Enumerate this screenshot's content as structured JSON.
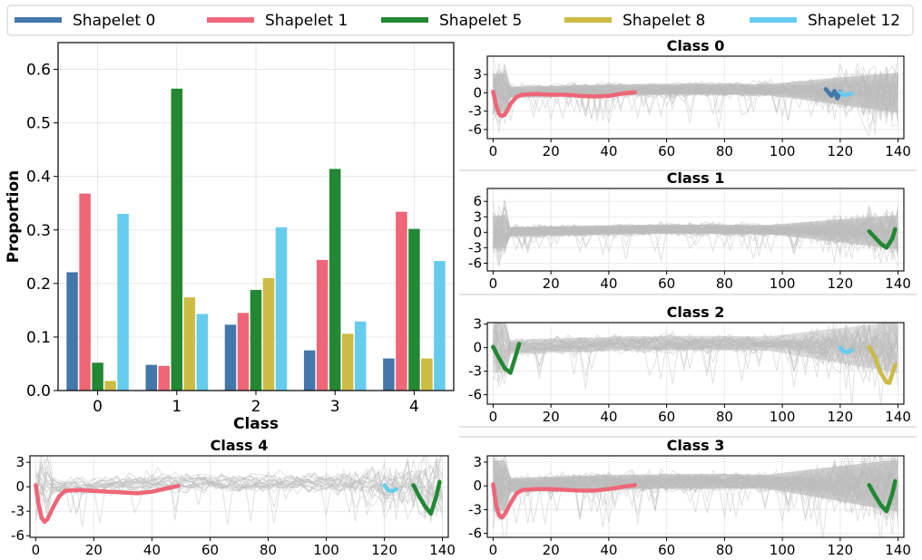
{
  "legend": {
    "items": [
      {
        "label": "Shapelet 0",
        "color": "#4477aa"
      },
      {
        "label": "Shapelet 1",
        "color": "#ee6677"
      },
      {
        "label": "Shapelet 5",
        "color": "#228833"
      },
      {
        "label": "Shapelet 8",
        "color": "#ccbb44"
      },
      {
        "label": "Shapelet 12",
        "color": "#66ccee"
      }
    ]
  },
  "chart_data": [
    {
      "type": "bar",
      "xlabel": "Class",
      "ylabel": "Proportion",
      "categories": [
        "0",
        "1",
        "2",
        "3",
        "4"
      ],
      "ylim": [
        0,
        0.65
      ],
      "yticks": [
        "0.0",
        "0.1",
        "0.2",
        "0.3",
        "0.4",
        "0.5",
        "0.6"
      ],
      "grid": true,
      "series": [
        {
          "name": "Shapelet 0",
          "color": "#4477aa",
          "values": [
            0.221,
            0.048,
            0.123,
            0.075,
            0.06
          ]
        },
        {
          "name": "Shapelet 1",
          "color": "#ee6677",
          "values": [
            0.368,
            0.046,
            0.145,
            0.244,
            0.334
          ]
        },
        {
          "name": "Shapelet 5",
          "color": "#228833",
          "values": [
            0.052,
            0.564,
            0.188,
            0.414,
            0.302
          ]
        },
        {
          "name": "Shapelet 8",
          "color": "#ccbb44",
          "values": [
            0.018,
            0.174,
            0.21,
            0.106,
            0.06
          ]
        },
        {
          "name": "Shapelet 12",
          "color": "#66ccee",
          "values": [
            0.33,
            0.143,
            0.305,
            0.129,
            0.242
          ]
        }
      ]
    },
    {
      "type": "line",
      "title": "Class 0",
      "xlim": [
        -2,
        142
      ],
      "ylim": [
        -7.5,
        6
      ],
      "xticks": [
        "0",
        "20",
        "40",
        "60",
        "80",
        "100",
        "120",
        "140"
      ],
      "yticks": [
        "3",
        "0",
        "-3",
        "-6"
      ],
      "background": "dense gray time series",
      "shapelets": [
        {
          "name": "Shapelet 1",
          "color": "#ee6677",
          "x": [
            0,
            1,
            2,
            3,
            4,
            5,
            6,
            8,
            10,
            15,
            20,
            25,
            30,
            35,
            40,
            45,
            49
          ],
          "y": [
            0.2,
            -2.0,
            -3.4,
            -3.8,
            -3.6,
            -2.8,
            -1.8,
            -0.7,
            -0.3,
            -0.2,
            -0.3,
            -0.3,
            -0.5,
            -0.6,
            -0.5,
            -0.1,
            0.1
          ]
        },
        {
          "name": "Shapelet 0",
          "color": "#4477aa",
          "x": [
            115,
            117,
            118,
            119,
            120
          ],
          "y": [
            0.6,
            -0.5,
            0.3,
            -0.9,
            0.2
          ]
        },
        {
          "name": "Shapelet 12",
          "color": "#66ccee",
          "x": [
            120,
            121,
            122,
            123,
            124
          ],
          "y": [
            0.1,
            -0.3,
            -0.4,
            -0.2,
            -0.1
          ]
        }
      ]
    },
    {
      "type": "line",
      "title": "Class 1",
      "xlim": [
        -2,
        142
      ],
      "ylim": [
        -7.5,
        8.5
      ],
      "xticks": [
        "0",
        "20",
        "40",
        "60",
        "80",
        "100",
        "120",
        "140"
      ],
      "yticks": [
        "6",
        "3",
        "0",
        "-3",
        "-6"
      ],
      "background": "dense gray time series",
      "shapelets": [
        {
          "name": "Shapelet 5",
          "color": "#228833",
          "x": [
            130,
            132,
            134,
            136,
            138,
            139
          ],
          "y": [
            0.2,
            -1.0,
            -2.2,
            -3.0,
            -1.2,
            0.6
          ]
        }
      ]
    },
    {
      "type": "line",
      "title": "Class 2",
      "xlim": [
        -2,
        142
      ],
      "ylim": [
        -7.2,
        3.2
      ],
      "xticks": [
        "0",
        "20",
        "40",
        "60",
        "80",
        "100",
        "120",
        "140"
      ],
      "yticks": [
        "3",
        "0",
        "-3",
        "-6"
      ],
      "background": "gray time series",
      "shapelets": [
        {
          "name": "Shapelet 5",
          "color": "#228833",
          "x": [
            0,
            2,
            4,
            6,
            8,
            9
          ],
          "y": [
            0.1,
            -1.3,
            -2.6,
            -3.2,
            -0.8,
            0.5
          ]
        },
        {
          "name": "Shapelet 12",
          "color": "#66ccee",
          "x": [
            120,
            121,
            122,
            123,
            124
          ],
          "y": [
            0.0,
            -0.4,
            -0.6,
            -0.5,
            -0.3
          ]
        },
        {
          "name": "Shapelet 8",
          "color": "#ccbb44",
          "x": [
            130,
            132,
            134,
            136,
            137,
            139
          ],
          "y": [
            0.1,
            -1.2,
            -3.2,
            -4.4,
            -4.5,
            -2.2
          ]
        }
      ]
    },
    {
      "type": "line",
      "title": "Class 4",
      "xlim": [
        -2,
        142
      ],
      "ylim": [
        -6.2,
        3.8
      ],
      "xticks": [
        "0",
        "20",
        "40",
        "60",
        "80",
        "100",
        "120",
        "140"
      ],
      "yticks": [
        "3",
        "0",
        "-3",
        "-6"
      ],
      "background": "sparse gray time series",
      "shapelets": [
        {
          "name": "Shapelet 1",
          "color": "#ee6677",
          "x": [
            0,
            1,
            2,
            3,
            4,
            6,
            8,
            10,
            15,
            20,
            25,
            30,
            35,
            40,
            45,
            49
          ],
          "y": [
            0.2,
            -2.2,
            -3.8,
            -4.3,
            -4.0,
            -2.5,
            -1.2,
            -0.5,
            -0.4,
            -0.5,
            -0.6,
            -0.7,
            -0.8,
            -0.6,
            -0.2,
            0.1
          ]
        },
        {
          "name": "Shapelet 12",
          "color": "#66ccee",
          "x": [
            120,
            121,
            122,
            123,
            124
          ],
          "y": [
            0.2,
            -0.3,
            -0.5,
            -0.5,
            -0.3
          ]
        },
        {
          "name": "Shapelet 5",
          "color": "#228833",
          "x": [
            130,
            132,
            134,
            136,
            138,
            139
          ],
          "y": [
            0.2,
            -1.2,
            -2.4,
            -3.3,
            -1.0,
            0.6
          ]
        }
      ]
    },
    {
      "type": "line",
      "title": "Class 3",
      "xlim": [
        -2,
        142
      ],
      "ylim": [
        -6.5,
        3.8
      ],
      "xticks": [
        "0",
        "20",
        "40",
        "60",
        "80",
        "100",
        "120",
        "140"
      ],
      "yticks": [
        "3",
        "0",
        "-3",
        "-6"
      ],
      "background": "dense gray time series",
      "shapelets": [
        {
          "name": "Shapelet 1",
          "color": "#ee6677",
          "x": [
            0,
            1,
            2,
            3,
            4,
            6,
            8,
            10,
            15,
            20,
            25,
            30,
            35,
            40,
            45,
            49
          ],
          "y": [
            0.2,
            -2.4,
            -3.7,
            -4.0,
            -3.6,
            -2.2,
            -1.0,
            -0.5,
            -0.4,
            -0.4,
            -0.5,
            -0.6,
            -0.6,
            -0.4,
            -0.1,
            0.1
          ]
        },
        {
          "name": "Shapelet 5",
          "color": "#228833",
          "x": [
            130,
            132,
            134,
            136,
            138,
            139
          ],
          "y": [
            0.1,
            -1.2,
            -2.4,
            -3.2,
            -1.0,
            0.6
          ]
        }
      ]
    }
  ]
}
